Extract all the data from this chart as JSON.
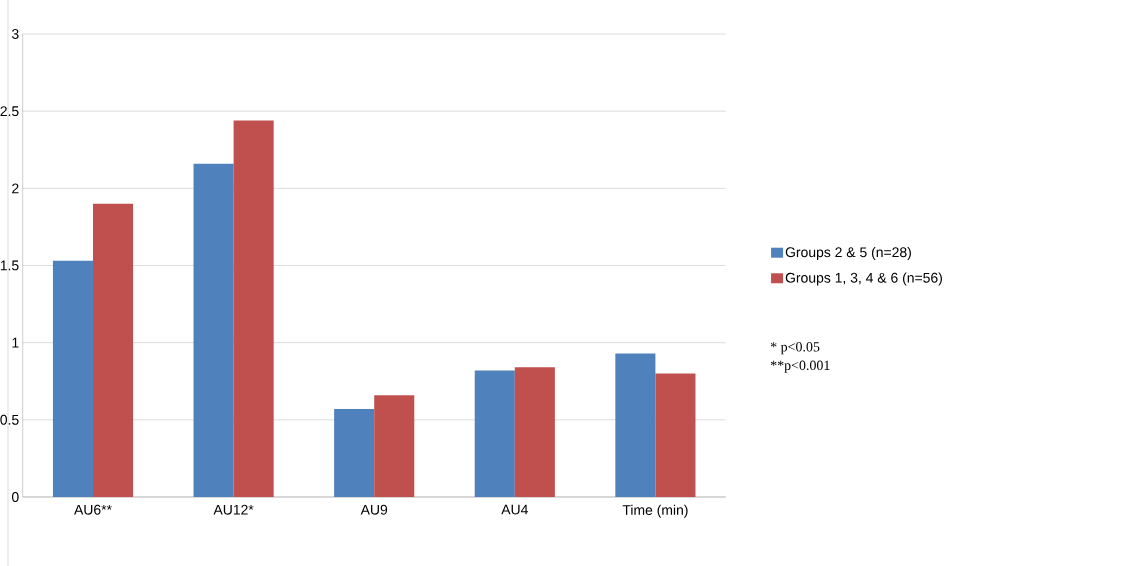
{
  "chart_data": {
    "type": "bar",
    "categories": [
      "AU6**",
      "AU12*",
      "AU9",
      "AU4",
      "Time (min)"
    ],
    "series": [
      {
        "name": "Groups 2 & 5 (n=28)",
        "color": "#4f81bd",
        "values": [
          1.53,
          2.16,
          0.57,
          0.82,
          0.93
        ]
      },
      {
        "name": "Groups 1, 3, 4 & 6 (n=56)",
        "color": "#c0504d",
        "values": [
          1.9,
          2.44,
          0.66,
          0.84,
          0.8
        ]
      }
    ],
    "ylim": [
      0,
      3
    ],
    "yticks": [
      0,
      0.5,
      1,
      1.5,
      2,
      2.5,
      3
    ],
    "grid": "y",
    "legend": "right",
    "annotations": [
      "* p<0.05",
      "**p<0.001"
    ]
  }
}
